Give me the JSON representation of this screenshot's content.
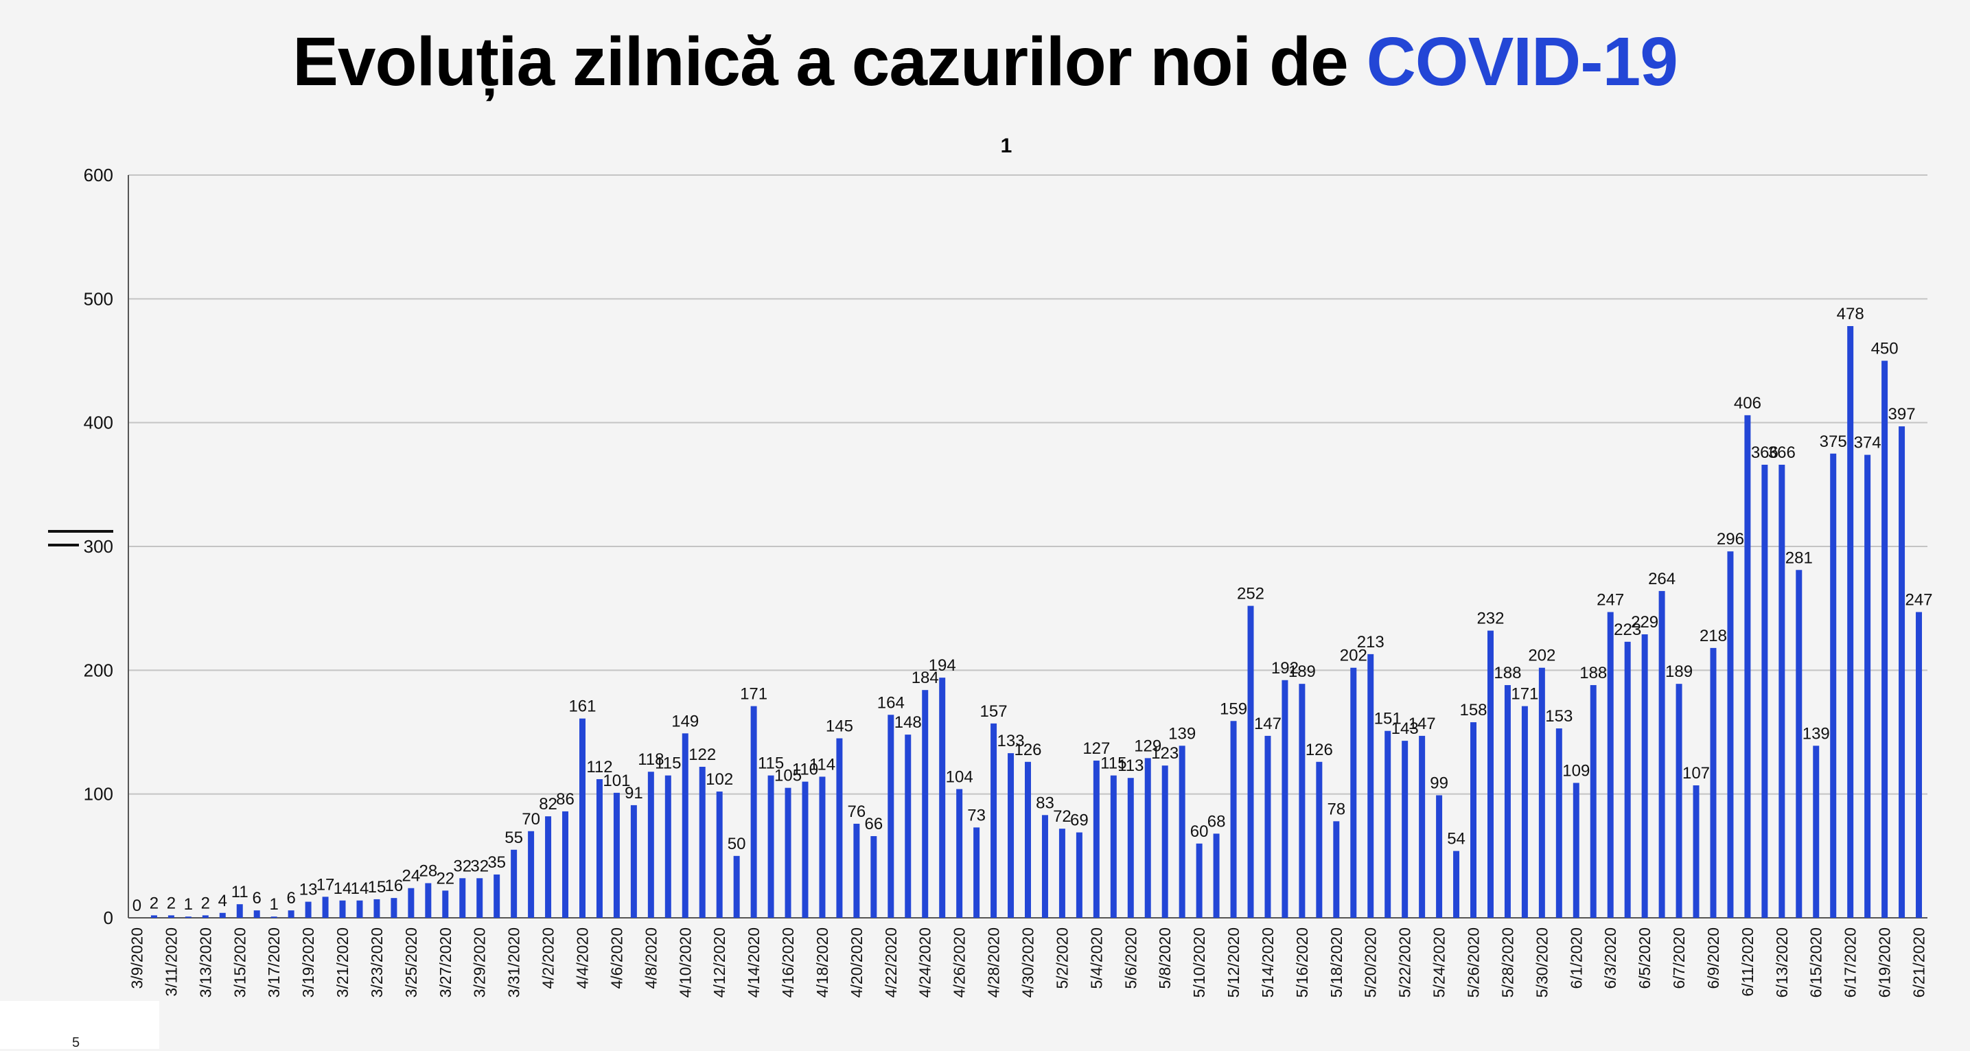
{
  "title": {
    "main": "Evoluția zilnică a cazurilor noi de ",
    "accent": "COVID-19",
    "accent_color": "#2346d6"
  },
  "page_number": "5",
  "chart_data": {
    "type": "bar",
    "title": "1",
    "xlabel": "",
    "ylabel": "",
    "ylim": [
      0,
      600
    ],
    "yticks": [
      0,
      100,
      200,
      300,
      400,
      500,
      600
    ],
    "grid": true,
    "bar_color": "#2346d6",
    "categories": [
      "3/9/2020",
      "3/10/2020",
      "3/11/2020",
      "3/12/2020",
      "3/13/2020",
      "3/14/2020",
      "3/15/2020",
      "3/16/2020",
      "3/17/2020",
      "3/18/2020",
      "3/19/2020",
      "3/20/2020",
      "3/21/2020",
      "3/22/2020",
      "3/23/2020",
      "3/24/2020",
      "3/25/2020",
      "3/26/2020",
      "3/27/2020",
      "3/28/2020",
      "3/29/2020",
      "3/30/2020",
      "3/31/2020",
      "4/1/2020",
      "4/2/2020",
      "4/3/2020",
      "4/4/2020",
      "4/5/2020",
      "4/6/2020",
      "4/7/2020",
      "4/8/2020",
      "4/9/2020",
      "4/10/2020",
      "4/11/2020",
      "4/12/2020",
      "4/13/2020",
      "4/14/2020",
      "4/15/2020",
      "4/16/2020",
      "4/17/2020",
      "4/18/2020",
      "4/19/2020",
      "4/20/2020",
      "4/21/2020",
      "4/22/2020",
      "4/23/2020",
      "4/24/2020",
      "4/25/2020",
      "4/26/2020",
      "4/27/2020",
      "4/28/2020",
      "4/29/2020",
      "4/30/2020",
      "5/1/2020",
      "5/2/2020",
      "5/3/2020",
      "5/4/2020",
      "5/5/2020",
      "5/6/2020",
      "5/7/2020",
      "5/8/2020",
      "5/9/2020",
      "5/10/2020",
      "5/11/2020",
      "5/12/2020",
      "5/13/2020",
      "5/14/2020",
      "5/15/2020",
      "5/16/2020",
      "5/17/2020",
      "5/18/2020",
      "5/19/2020",
      "5/20/2020",
      "5/21/2020",
      "5/22/2020",
      "5/23/2020",
      "5/24/2020",
      "5/25/2020",
      "5/26/2020",
      "5/27/2020",
      "5/28/2020",
      "5/29/2020",
      "5/30/2020",
      "5/31/2020",
      "6/1/2020",
      "6/2/2020",
      "6/3/2020",
      "6/4/2020",
      "6/5/2020",
      "6/6/2020",
      "6/7/2020",
      "6/8/2020",
      "6/9/2020",
      "6/10/2020",
      "6/11/2020",
      "6/12/2020",
      "6/13/2020",
      "6/14/2020",
      "6/15/2020",
      "6/16/2020",
      "6/17/2020",
      "6/18/2020",
      "6/19/2020",
      "6/20/2020",
      "6/21/2020"
    ],
    "shown_tick_labels": [
      "3/9/2020",
      "3/11/2020",
      "3/13/2020",
      "3/15/2020",
      "3/17/2020",
      "3/19/2020",
      "3/21/2020",
      "3/23/2020",
      "3/25/2020",
      "3/27/2020",
      "3/29/2020",
      "3/31/2020",
      "4/2/2020",
      "4/4/2020",
      "4/6/2020",
      "4/8/2020",
      "4/10/2020",
      "4/12/2020",
      "4/14/2020",
      "4/16/2020",
      "4/18/2020",
      "4/20/2020",
      "4/22/2020",
      "4/24/2020",
      "4/26/2020",
      "4/28/2020",
      "4/30/2020",
      "5/2/2020",
      "5/4/2020",
      "5/6/2020",
      "5/8/2020",
      "5/10/2020",
      "5/12/2020",
      "5/14/2020",
      "5/16/2020",
      "5/18/2020",
      "5/20/2020",
      "5/22/2020",
      "5/24/2020",
      "5/26/2020",
      "5/28/2020",
      "5/30/2020",
      "6/1/2020",
      "6/3/2020",
      "6/5/2020",
      "6/7/2020",
      "6/9/2020",
      "6/11/2020",
      "6/13/2020",
      "6/15/2020",
      "6/17/2020",
      "6/19/2020",
      "6/21/2020"
    ],
    "values": [
      0,
      2,
      2,
      1,
      2,
      4,
      11,
      6,
      1,
      6,
      13,
      17,
      14,
      14,
      15,
      16,
      24,
      28,
      22,
      32,
      32,
      35,
      55,
      70,
      82,
      86,
      161,
      112,
      101,
      91,
      118,
      115,
      149,
      122,
      102,
      50,
      171,
      115,
      105,
      110,
      114,
      145,
      76,
      66,
      164,
      148,
      184,
      194,
      104,
      73,
      157,
      133,
      126,
      83,
      72,
      69,
      127,
      115,
      113,
      129,
      123,
      139,
      60,
      68,
      159,
      252,
      147,
      192,
      189,
      126,
      78,
      202,
      213,
      151,
      143,
      147,
      99,
      54,
      158,
      232,
      188,
      171,
      202,
      153,
      109,
      188,
      247,
      223,
      229,
      264,
      189,
      107,
      218,
      296,
      406,
      366,
      366,
      281,
      139,
      375,
      478,
      374,
      450,
      397,
      247
    ]
  }
}
